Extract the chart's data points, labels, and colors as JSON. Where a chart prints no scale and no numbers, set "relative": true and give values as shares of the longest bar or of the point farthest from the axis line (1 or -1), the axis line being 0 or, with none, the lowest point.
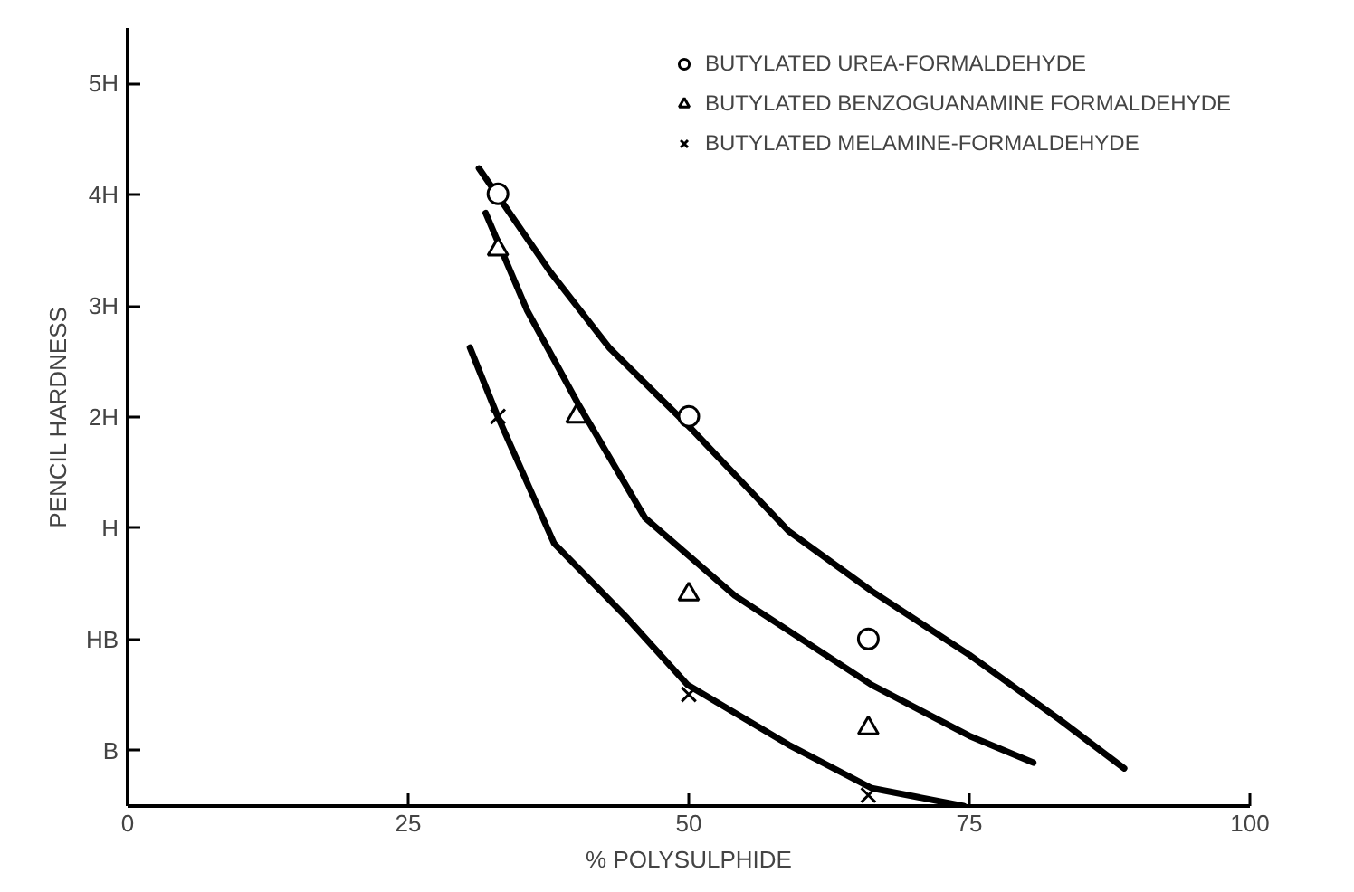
{
  "chart_data": {
    "type": "scatter",
    "xlabel": "% POLYSULPHIDE",
    "ylabel": "PENCIL HARDNESS",
    "xlim": [
      0,
      100
    ],
    "xticks": [
      0,
      25,
      50,
      75,
      100
    ],
    "relative": true,
    "y_categories": [
      "5H",
      "4H",
      "3H",
      "2H",
      "H",
      "HB",
      "B"
    ],
    "grid": false,
    "legend": "top right",
    "series": [
      {
        "name": "BUTYLATED UREA-FORMALDEHYDE",
        "marker": "circle",
        "color": "#000000",
        "x": [
          33,
          50,
          66
        ],
        "values": [
          0.96,
          0.611,
          0.262
        ]
      },
      {
        "name": "BUTYLATED BENZOGUANAMINE FORMALDEHYDE",
        "marker": "triangle",
        "color": "#000000",
        "x": [
          33,
          40,
          50,
          66
        ],
        "values": [
          0.873,
          0.611,
          0.332,
          0.122
        ]
      },
      {
        "name": "BUTYLATED MELAMINE-FORMALDEHYDE",
        "marker": "cross",
        "color": "#000000",
        "x": [
          33,
          50,
          66
        ],
        "values": [
          0.611,
          0.175,
          0.017
        ]
      },
      {
        "type": "line",
        "marker": "none",
        "color": "#000000",
        "x": [
          31.3,
          37.6,
          42.9,
          50.2,
          58.9,
          66.3,
          75.0,
          83.0,
          88.8
        ],
        "values": [
          1.0,
          0.839,
          0.719,
          0.592,
          0.431,
          0.337,
          0.237,
          0.136,
          0.059
        ]
      },
      {
        "type": "line",
        "marker": "none",
        "color": "#000000",
        "x": [
          31.9,
          35.6,
          40.1,
          46.1,
          54.1,
          66.3,
          75.0,
          80.7
        ],
        "values": [
          0.93,
          0.777,
          0.632,
          0.452,
          0.33,
          0.19,
          0.11,
          0.068
        ]
      },
      {
        "type": "line",
        "marker": "none",
        "color": "#000000",
        "x": [
          30.5,
          32.9,
          38.0,
          44.5,
          49.9,
          58.9,
          66.3,
          74.5
        ],
        "values": [
          0.719,
          0.614,
          0.412,
          0.295,
          0.19,
          0.096,
          0.028,
          0.0
        ]
      }
    ]
  }
}
